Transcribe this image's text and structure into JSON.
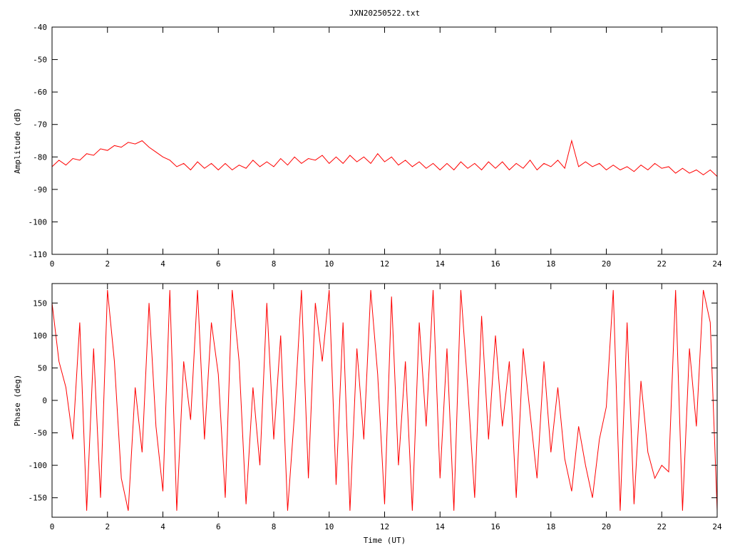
{
  "chart_data": [
    {
      "type": "line",
      "title": "JXN20250522.txt",
      "y_label": "Amplitude (dB)",
      "x": [
        0,
        0.25,
        0.5,
        0.75,
        1,
        1.25,
        1.5,
        1.75,
        2,
        2.25,
        2.5,
        2.75,
        3,
        3.25,
        3.5,
        3.75,
        4,
        4.25,
        4.5,
        4.75,
        5,
        5.25,
        5.5,
        5.75,
        6,
        6.25,
        6.5,
        6.75,
        7,
        7.25,
        7.5,
        7.75,
        8,
        8.25,
        8.5,
        8.75,
        9,
        9.25,
        9.5,
        9.75,
        10,
        10.25,
        10.5,
        10.75,
        11,
        11.25,
        11.5,
        11.75,
        12,
        12.25,
        12.5,
        12.75,
        13,
        13.25,
        13.5,
        13.75,
        14,
        14.25,
        14.5,
        14.75,
        15,
        15.25,
        15.5,
        15.75,
        16,
        16.25,
        16.5,
        16.75,
        17,
        17.25,
        17.5,
        17.75,
        18,
        18.25,
        18.5,
        18.75,
        19,
        19.25,
        19.5,
        19.75,
        20,
        20.25,
        20.5,
        20.75,
        21,
        21.25,
        21.5,
        21.75,
        22,
        22.25,
        22.5,
        22.75,
        23,
        23.25,
        23.5,
        23.75,
        24
      ],
      "series": [
        {
          "color": "#ff0000",
          "values": [
            -83,
            -81,
            -82.5,
            -80.5,
            -81,
            -79,
            -79.5,
            -77.5,
            -78,
            -76.5,
            -77,
            -75.5,
            -76,
            -75,
            -77,
            -78.5,
            -80,
            -81,
            -83,
            -82,
            -84,
            -81.5,
            -83.5,
            -82,
            -84,
            -82,
            -84,
            -82.5,
            -83.5,
            -81,
            -83,
            -81.5,
            -83,
            -80.5,
            -82.5,
            -80,
            -82,
            -80.5,
            -81,
            -79.5,
            -82,
            -80,
            -82,
            -79.5,
            -81.5,
            -80,
            -82,
            -79,
            -81.5,
            -80,
            -82.5,
            -81,
            -83,
            -81.5,
            -83.5,
            -82,
            -84,
            -82,
            -84,
            -81.5,
            -83.5,
            -82,
            -84,
            -81.5,
            -83.5,
            -81.5,
            -84,
            -82,
            -83.5,
            -81,
            -84,
            -82,
            -83,
            -81,
            -83.5,
            -75,
            -83,
            -81.5,
            -83,
            -82,
            -84,
            -82.5,
            -84,
            -83,
            -84.5,
            -82.5,
            -84,
            -82,
            -83.5,
            -83,
            -85,
            -83.5,
            -85,
            -84,
            -85.5,
            -84,
            -86
          ]
        }
      ],
      "xlim": [
        0,
        24
      ],
      "xticks": [
        0,
        2,
        4,
        6,
        8,
        10,
        12,
        14,
        16,
        18,
        20,
        22,
        24
      ],
      "ylim": [
        -110,
        -40
      ],
      "yticks": [
        -110,
        -100,
        -90,
        -80,
        -70,
        -60,
        -50,
        -40
      ]
    },
    {
      "type": "line",
      "y_label": "Phase (deg)",
      "x_label": "Time (UT)",
      "x": [
        0,
        0.25,
        0.5,
        0.75,
        1,
        1.25,
        1.5,
        1.75,
        2,
        2.25,
        2.5,
        2.75,
        3,
        3.25,
        3.5,
        3.75,
        4,
        4.25,
        4.5,
        4.75,
        5,
        5.25,
        5.5,
        5.75,
        6,
        6.25,
        6.5,
        6.75,
        7,
        7.25,
        7.5,
        7.75,
        8,
        8.25,
        8.5,
        8.75,
        9,
        9.25,
        9.5,
        9.75,
        10,
        10.25,
        10.5,
        10.75,
        11,
        11.25,
        11.5,
        11.75,
        12,
        12.25,
        12.5,
        12.75,
        13,
        13.25,
        13.5,
        13.75,
        14,
        14.25,
        14.5,
        14.75,
        15,
        15.25,
        15.5,
        15.75,
        16,
        16.25,
        16.5,
        16.75,
        17,
        17.25,
        17.5,
        17.75,
        18,
        18.25,
        18.5,
        18.75,
        19,
        19.25,
        19.5,
        19.75,
        20,
        20.25,
        20.5,
        20.75,
        21,
        21.25,
        21.5,
        21.75,
        22,
        22.25,
        22.5,
        22.75,
        23,
        23.25,
        23.5,
        23.75,
        24
      ],
      "series": [
        {
          "color": "#ff0000",
          "values": [
            150,
            60,
            20,
            -60,
            120,
            -170,
            80,
            -150,
            170,
            60,
            -120,
            -170,
            20,
            -80,
            150,
            -40,
            -140,
            170,
            -170,
            60,
            -30,
            170,
            -60,
            120,
            40,
            -150,
            170,
            60,
            -160,
            20,
            -100,
            150,
            -60,
            100,
            -170,
            -20,
            170,
            -120,
            150,
            60,
            170,
            -130,
            120,
            -170,
            80,
            -60,
            170,
            40,
            -160,
            160,
            -100,
            60,
            -170,
            120,
            -40,
            170,
            -120,
            80,
            -170,
            170,
            20,
            -150,
            130,
            -60,
            100,
            -40,
            60,
            -150,
            80,
            -20,
            -120,
            60,
            -80,
            20,
            -90,
            -140,
            -40,
            -100,
            -150,
            -60,
            -10,
            170,
            -170,
            120,
            -160,
            30,
            -80,
            -120,
            -100,
            -110,
            170,
            -170,
            80,
            -40,
            170,
            120,
            -170
          ]
        }
      ],
      "xlim": [
        0,
        24
      ],
      "xticks": [
        0,
        2,
        4,
        6,
        8,
        10,
        12,
        14,
        16,
        18,
        20,
        22,
        24
      ],
      "ylim": [
        -180,
        180
      ],
      "yticks": [
        -150,
        -100,
        -50,
        0,
        50,
        100,
        150
      ]
    }
  ]
}
